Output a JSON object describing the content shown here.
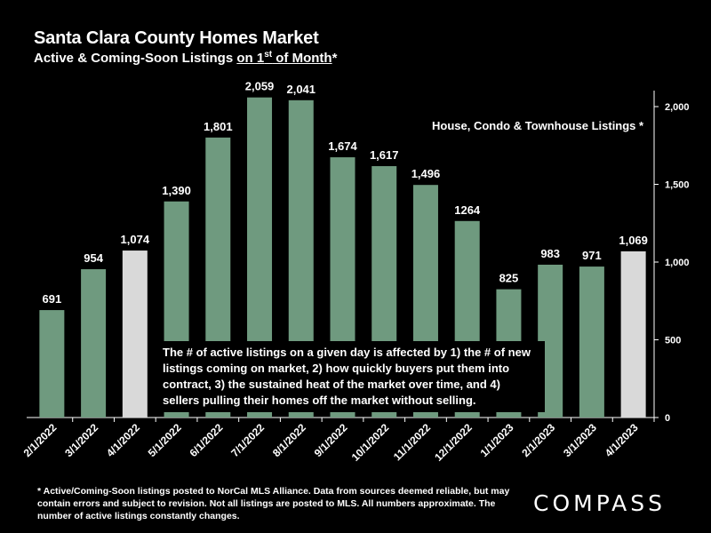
{
  "header": {
    "title": "Santa Clara County Homes Market",
    "subtitle_pre": "Active & Coming-Soon Listings ",
    "subtitle_underlined": "on 1",
    "subtitle_sup": "st",
    "subtitle_underlined_post": " of Month",
    "subtitle_post": "*"
  },
  "legend_note": "House, Condo & Townhouse Listings *",
  "annotation": "The # of active listings on a given day is affected by 1) the # of new listings coming on market, 2) how quickly buyers put them into contract, 3) the sustained heat of the market over time, and 4) sellers pulling their homes off the market without selling.",
  "footnote": "* Active/Coming-Soon listings posted to NorCal MLS Alliance.  Data from sources deemed reliable, but may contain errors and subject to revision.  Not all listings are posted to MLS. All numbers approximate. The number of active listings constantly changes.",
  "logo": "COMPASS",
  "colors": {
    "bar": "#6f9a7f",
    "highlight_bar": "#d9d9d9",
    "background": "#000000",
    "text": "#ffffff"
  },
  "chart_data": {
    "type": "bar",
    "categories": [
      "2/1/2022",
      "3/1/2022",
      "4/1/2022",
      "5/1/2022",
      "6/1/2022",
      "7/1/2022",
      "8/1/2022",
      "9/1/2022",
      "10/1/2022",
      "11/1/2022",
      "12/1/2022",
      "1/1/2023",
      "2/1/2023",
      "3/1/2023",
      "4/1/2023"
    ],
    "values": [
      691,
      954,
      1074,
      1390,
      1801,
      2059,
      2041,
      1674,
      1617,
      1496,
      1264,
      825,
      983,
      971,
      1069
    ],
    "data_labels": [
      "691",
      "954",
      "1,074",
      "1,390",
      "1,801",
      "2,059",
      "2,041",
      "1,674",
      "1,617",
      "1,496",
      "1264",
      "825",
      "983",
      "971",
      "1,069"
    ],
    "highlighted_categories": [
      "4/1/2022",
      "4/1/2023"
    ],
    "ylim": [
      0,
      2000
    ],
    "yticks": [
      0,
      500,
      1000,
      1500,
      2000
    ],
    "ytick_labels": [
      "0",
      "500",
      "1,000",
      "1,500",
      "2,000"
    ],
    "y_axis_side": "right",
    "grid": false,
    "xlabel": "",
    "ylabel": ""
  }
}
